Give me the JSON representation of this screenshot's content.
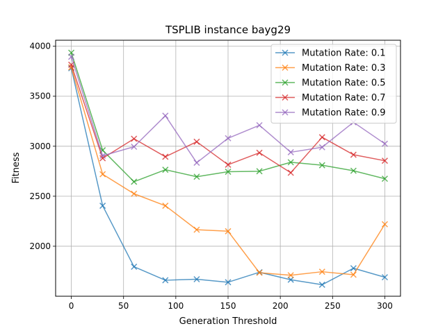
{
  "chart_data": {
    "type": "line",
    "title": "TSPLIB instance bayg29",
    "xlabel": "Generation Threshold",
    "ylabel": "Fitness",
    "xlim": [
      -15,
      315
    ],
    "ylim": [
      1500,
      4060
    ],
    "xticks": [
      0,
      50,
      100,
      150,
      200,
      250,
      300
    ],
    "yticks": [
      2000,
      2500,
      3000,
      3500,
      4000
    ],
    "grid": true,
    "legend_position": "top-right",
    "marker": "x",
    "x": [
      0,
      30,
      60,
      90,
      120,
      150,
      180,
      210,
      240,
      270,
      300
    ],
    "series": [
      {
        "name": "Mutation Rate: 0.1",
        "color": "#1f77b4",
        "values": [
          3780,
          2405,
          1795,
          1660,
          1670,
          1640,
          1740,
          1665,
          1615,
          1780,
          1690
        ]
      },
      {
        "name": "Mutation Rate: 0.3",
        "color": "#ff7f0e",
        "values": [
          3790,
          2720,
          2525,
          2405,
          2165,
          2150,
          1735,
          1710,
          1745,
          1715,
          2220
        ]
      },
      {
        "name": "Mutation Rate: 0.5",
        "color": "#2ca02c",
        "values": [
          3935,
          2960,
          2645,
          2765,
          2695,
          2745,
          2750,
          2840,
          2810,
          2755,
          2675
        ]
      },
      {
        "name": "Mutation Rate: 0.7",
        "color": "#d62728",
        "values": [
          3815,
          2880,
          3075,
          2895,
          3045,
          2815,
          2935,
          2735,
          3090,
          2915,
          2855
        ]
      },
      {
        "name": "Mutation Rate: 0.9",
        "color": "#9467bd",
        "values": [
          3895,
          2905,
          2995,
          3305,
          2835,
          3080,
          3210,
          2940,
          2990,
          3240,
          3025
        ]
      }
    ]
  }
}
